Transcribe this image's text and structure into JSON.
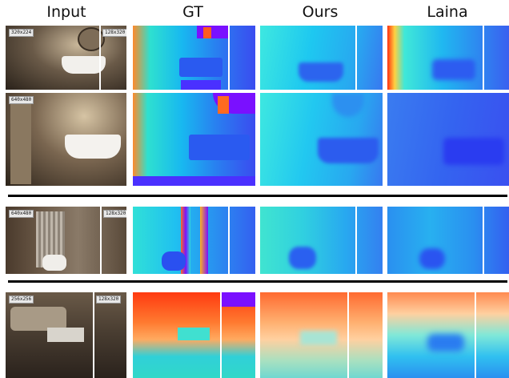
{
  "headers": {
    "input": "Input",
    "gt": "GT",
    "ours": "Ours",
    "laina": "Laina"
  },
  "rows": [
    {
      "big": "320x224",
      "small": "128x320"
    },
    {
      "big": "640x480"
    },
    {
      "big": "640x480",
      "small": "128x320"
    },
    {
      "big": "256x256",
      "small": "128x320"
    }
  ]
}
